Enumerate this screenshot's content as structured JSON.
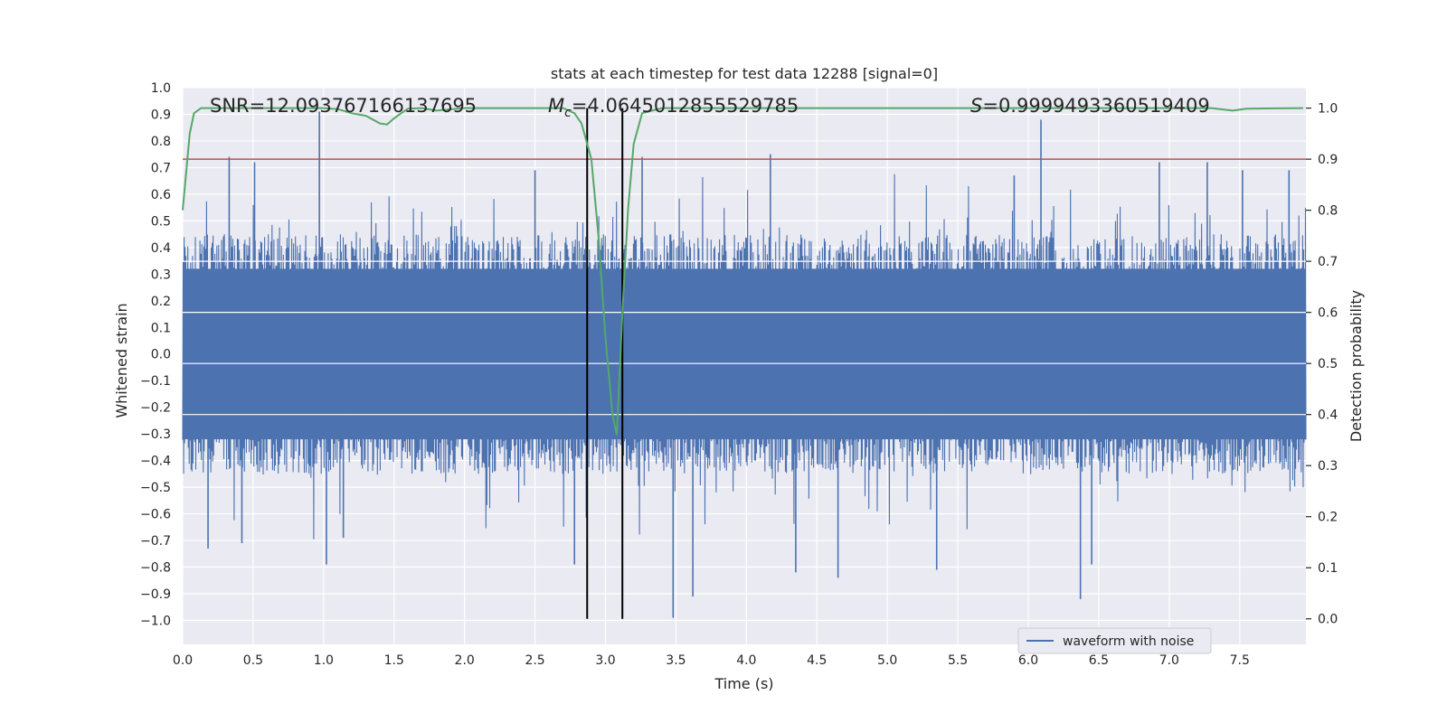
{
  "chart_data": {
    "type": "line",
    "title": "stats at each timestep for test data 12288 [signal=0]",
    "xlabel": "Time (s)",
    "ylabel": "Whitened strain",
    "ylabel_right": "Detection probability",
    "xlim": [
      0.0,
      7.97
    ],
    "ylim": [
      -1.09,
      1.0
    ],
    "ylim_right": [
      -0.05,
      1.04
    ],
    "x_ticks": [
      0.0,
      0.5,
      1.0,
      1.5,
      2.0,
      2.5,
      3.0,
      3.5,
      4.0,
      4.5,
      5.0,
      5.5,
      6.0,
      6.5,
      7.0,
      7.5
    ],
    "x_tick_labels": [
      "0.0",
      "0.5",
      "1.0",
      "1.5",
      "2.0",
      "2.5",
      "3.0",
      "3.5",
      "4.0",
      "4.5",
      "5.0",
      "5.5",
      "6.0",
      "6.5",
      "7.0",
      "7.5"
    ],
    "y_ticks": [
      1.0,
      0.9,
      0.8,
      0.7,
      0.6,
      0.5,
      0.4,
      0.3,
      0.2,
      0.1,
      0.0,
      -0.1,
      -0.2,
      -0.3,
      -0.4,
      -0.5,
      -0.6,
      -0.7,
      -0.8,
      -0.9,
      -1.0
    ],
    "y_tick_labels": [
      "1.0",
      "0.9",
      "0.8",
      "0.7",
      "0.6",
      "0.5",
      "0.4",
      "0.3",
      "0.2",
      "0.1",
      "0.0",
      "−0.1",
      "−0.2",
      "−0.3",
      "−0.4",
      "−0.5",
      "−0.6",
      "−0.7",
      "−0.8",
      "−0.9",
      "−1.0"
    ],
    "y_right_ticks": [
      1.0,
      0.9,
      0.8,
      0.7,
      0.6,
      0.5,
      0.4,
      0.3,
      0.2,
      0.1,
      0.0
    ],
    "y_right_tick_labels": [
      "1.0",
      "0.9",
      "0.8",
      "0.7",
      "0.6",
      "0.5",
      "0.4",
      "0.3",
      "0.2",
      "0.1",
      "0.0"
    ],
    "annotations": {
      "snr": "SNR=12.093767166137695",
      "mc_symbol": "M",
      "mc_sub": "c",
      "mc_value": "=4.0645012855529785",
      "s_symbol": "S",
      "s_value": "=0.9999493360519409"
    },
    "threshold_right": 0.9,
    "vertical_lines_x": [
      2.87,
      3.12
    ],
    "series": [
      {
        "name": "waveform with noise",
        "color": "#4c72b0",
        "description": "whitened strain noise, dense band roughly ±0.3 with spikes",
        "band": [
          -0.45,
          0.45
        ],
        "spikes": [
          {
            "x": 0.33,
            "y": 0.74
          },
          {
            "x": 0.51,
            "y": 0.72
          },
          {
            "x": 0.97,
            "y": 0.91
          },
          {
            "x": 1.02,
            "y": -0.79
          },
          {
            "x": 1.14,
            "y": -0.69
          },
          {
            "x": 0.18,
            "y": -0.73
          },
          {
            "x": 0.42,
            "y": -0.71
          },
          {
            "x": 2.5,
            "y": 0.69
          },
          {
            "x": 2.78,
            "y": -0.79
          },
          {
            "x": 3.26,
            "y": 0.74
          },
          {
            "x": 3.48,
            "y": -0.99
          },
          {
            "x": 3.62,
            "y": -0.91
          },
          {
            "x": 4.17,
            "y": 0.75
          },
          {
            "x": 4.35,
            "y": -0.82
          },
          {
            "x": 4.65,
            "y": -0.84
          },
          {
            "x": 5.35,
            "y": -0.81
          },
          {
            "x": 5.9,
            "y": 0.67
          },
          {
            "x": 6.09,
            "y": 0.88
          },
          {
            "x": 6.37,
            "y": -0.92
          },
          {
            "x": 6.45,
            "y": -0.79
          },
          {
            "x": 6.93,
            "y": 0.72
          },
          {
            "x": 7.27,
            "y": 0.72
          },
          {
            "x": 7.52,
            "y": 0.69
          },
          {
            "x": 7.85,
            "y": 0.69
          }
        ]
      },
      {
        "name": "detection probability",
        "color": "#55a868",
        "axis": "right",
        "x": [
          0.0,
          0.05,
          0.08,
          0.13,
          0.2,
          0.3,
          0.5,
          0.8,
          1.0,
          1.1,
          1.2,
          1.3,
          1.4,
          1.45,
          1.5,
          1.55,
          1.6,
          1.7,
          1.8,
          2.0,
          2.5,
          2.7,
          2.78,
          2.83,
          2.9,
          2.95,
          3.0,
          3.05,
          3.08,
          3.12,
          3.16,
          3.2,
          3.26,
          3.4,
          4.0,
          5.0,
          6.0,
          7.0,
          7.3,
          7.45,
          7.55,
          7.95
        ],
        "y": [
          0.8,
          0.95,
          0.99,
          1.0,
          1.0,
          1.0,
          1.0,
          1.0,
          1.0,
          0.998,
          0.99,
          0.985,
          0.97,
          0.968,
          0.98,
          0.99,
          0.999,
          1.0,
          0.995,
          1.0,
          1.0,
          1.0,
          0.99,
          0.97,
          0.9,
          0.75,
          0.55,
          0.4,
          0.36,
          0.6,
          0.8,
          0.93,
          0.99,
          1.0,
          1.0,
          1.0,
          1.0,
          1.0,
          1.0,
          0.995,
          0.999,
          1.0
        ]
      }
    ],
    "legend": [
      "waveform with noise"
    ],
    "legend_location": "lower-right",
    "grid": true,
    "colors": {
      "background": "#eaeaf2",
      "grid": "#ffffff",
      "waveform": "#4c72b0",
      "probability": "#55a868",
      "threshold": "#c44e52",
      "vline": "#000000",
      "text": "#262626"
    }
  }
}
